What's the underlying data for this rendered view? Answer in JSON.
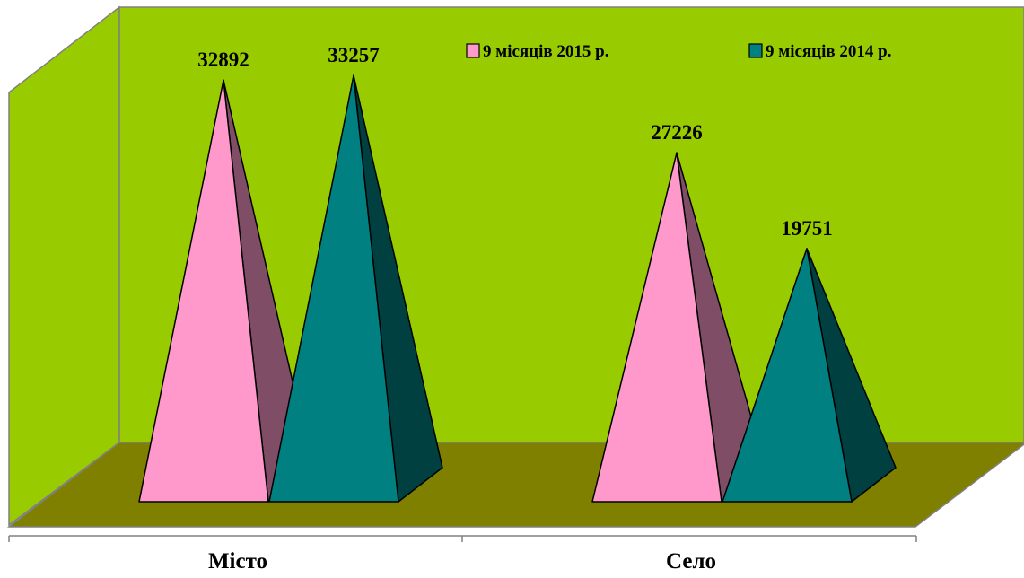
{
  "chart_data": {
    "type": "bar",
    "style": "3d-pyramid",
    "categories": [
      "Місто",
      "Село"
    ],
    "series": [
      {
        "name": "9 місяців 2015 р.",
        "values": [
          32892,
          27226
        ],
        "color": "#ff99cc",
        "shade": "#7f4d66"
      },
      {
        "name": "9 місяців 2014 р.",
        "values": [
          33257,
          19751
        ],
        "color": "#008080",
        "shade": "#004040"
      }
    ],
    "data_labels": [
      [
        "32892",
        "27226"
      ],
      [
        "33257",
        "19751"
      ]
    ],
    "ylim": [
      0,
      40000
    ],
    "grid": false,
    "legend_position": "top-right",
    "wall_color": "#99cc00",
    "floor_color": "#808000",
    "axis_line_color": "#808080"
  }
}
